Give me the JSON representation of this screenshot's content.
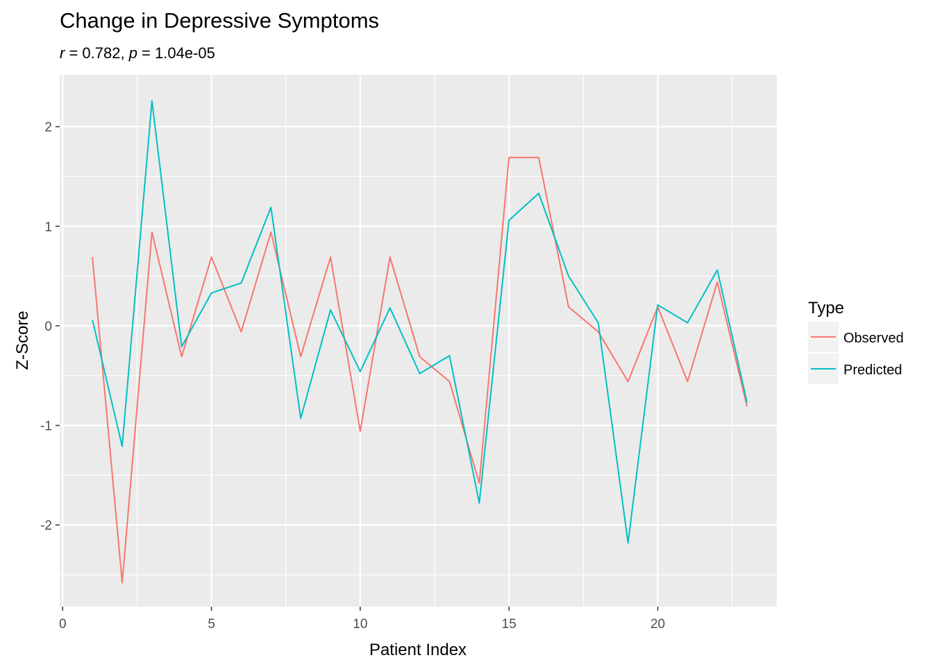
{
  "chart_data": {
    "type": "line",
    "title": "Change in Depressive Symptoms",
    "subtitle": {
      "r_symbol": "r",
      "r_value": " = 0.782, ",
      "p_symbol": "p",
      "p_value": " = 1.04e-05"
    },
    "xlabel": "Patient Index",
    "ylabel": "Z-Score",
    "xlim": [
      -0.1,
      24.0
    ],
    "ylim": [
      -2.82,
      2.52
    ],
    "x_ticks": [
      0,
      5,
      10,
      15,
      20
    ],
    "y_ticks": [
      -2,
      -1,
      0,
      1,
      2
    ],
    "x_tick_labels": [
      "0",
      "5",
      "10",
      "15",
      "20"
    ],
    "y_tick_labels": [
      "-2",
      "-1",
      "0",
      "1",
      "2"
    ],
    "x_minor_ticks": [
      2.5,
      7.5,
      12.5,
      17.5,
      22.5
    ],
    "y_minor_ticks": [
      -2.5,
      -1.5,
      -0.5,
      0.5,
      1.5
    ],
    "grid": true,
    "panel_background": "#ebebeb",
    "grid_color": "#ffffff",
    "legend": {
      "title": "Type",
      "position": "right"
    },
    "x": [
      1,
      2,
      3,
      4,
      5,
      6,
      7,
      8,
      9,
      10,
      11,
      12,
      13,
      14,
      15,
      16,
      17,
      18,
      19,
      20,
      21,
      22,
      23
    ],
    "series": [
      {
        "name": "Observed",
        "color": "#f8766d",
        "values": [
          0.69,
          -2.58,
          0.94,
          -0.31,
          0.69,
          -0.06,
          0.94,
          -0.31,
          0.69,
          -1.06,
          0.69,
          -0.31,
          -0.56,
          -1.58,
          1.69,
          1.69,
          0.19,
          -0.06,
          -0.56,
          0.19,
          -0.56,
          0.44,
          -0.81
        ]
      },
      {
        "name": "Predicted",
        "color": "#00bfc4",
        "values": [
          0.06,
          -1.21,
          2.26,
          -0.21,
          0.33,
          0.43,
          1.19,
          -0.93,
          0.16,
          -0.46,
          0.18,
          -0.48,
          -0.3,
          -1.78,
          1.06,
          1.33,
          0.5,
          0.03,
          -2.18,
          0.21,
          0.03,
          0.56,
          -0.77
        ]
      }
    ]
  }
}
